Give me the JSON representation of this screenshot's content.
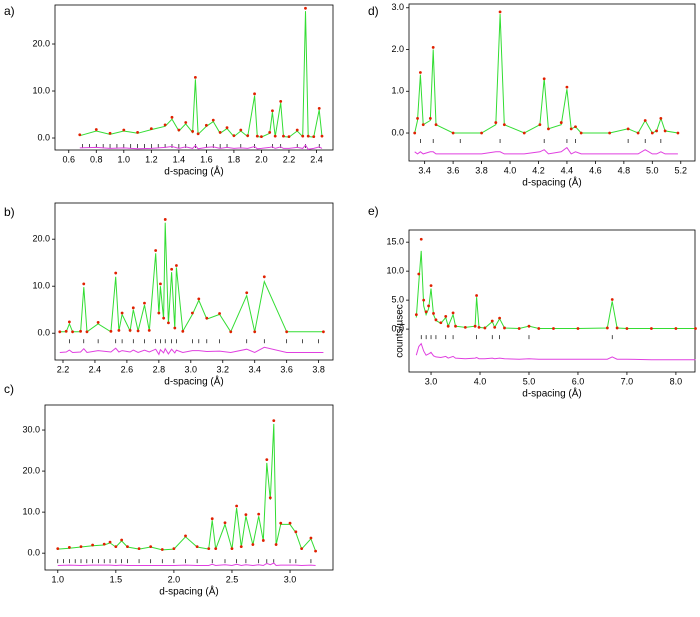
{
  "chart_data": [
    {
      "type": "line",
      "label": "a)",
      "xlabel": "d-spacing (Å)",
      "xlim": [
        0.5,
        2.52
      ],
      "ylim": [
        -2.55,
        28.3
      ],
      "xticks": [
        0.6,
        0.8,
        {
          "value": 1,
          "label": "1.0"
        },
        1.2,
        1.4,
        1.6,
        1.8,
        {
          "value": 2,
          "label": "2.0"
        },
        2.2,
        2.4
      ],
      "yticks": [
        {
          "value": 0,
          "label": "0.0"
        },
        {
          "value": 10,
          "label": "10.0"
        },
        {
          "value": 20,
          "label": "20.0"
        }
      ],
      "x": [
        0.68,
        0.8,
        0.9,
        1.0,
        1.1,
        1.2,
        1.3,
        1.35,
        1.4,
        1.45,
        1.5,
        1.52,
        1.54,
        1.6,
        1.65,
        1.7,
        1.75,
        1.8,
        1.85,
        1.9,
        1.95,
        1.97,
        2.0,
        2.06,
        2.08,
        2.1,
        2.14,
        2.16,
        2.2,
        2.26,
        2.3,
        2.32,
        2.34,
        2.38,
        2.42,
        2.44
      ],
      "series": [
        {
          "style": "points",
          "color": "#e02000",
          "values": [
            0.7,
            1.8,
            1.0,
            1.7,
            1.2,
            2.0,
            2.8,
            4.4,
            1.7,
            3.3,
            1.4,
            12.9,
            0.9,
            2.7,
            3.8,
            1.2,
            2.2,
            0.5,
            1.7,
            0.5,
            9.4,
            0.4,
            0.3,
            1.2,
            5.8,
            0.4,
            7.8,
            0.4,
            0.3,
            1.7,
            0.4,
            27.6,
            0.4,
            0.3,
            6.3,
            0.4
          ]
        },
        {
          "style": "line",
          "color": "#33dd33",
          "values": [
            0.5,
            1.5,
            0.8,
            1.5,
            1.0,
            1.8,
            2.5,
            4.0,
            1.5,
            3.0,
            1.2,
            12.5,
            0.8,
            2.5,
            3.5,
            1.0,
            2.0,
            0.3,
            1.5,
            0.3,
            9.0,
            0.3,
            0.2,
            1.0,
            5.5,
            0.3,
            7.5,
            0.3,
            0.2,
            1.5,
            0.3,
            27.0,
            0.3,
            0.2,
            6.0,
            0.3
          ]
        },
        {
          "style": "line",
          "color": "#e040e0",
          "values": [
            -2.1,
            -2.0,
            -2.2,
            -2.1,
            -2.3,
            -2.2,
            -2.0,
            -1.8,
            -2.2,
            -1.9,
            -2.2,
            -1.6,
            -2.3,
            -2.0,
            -1.9,
            -2.2,
            -2.0,
            -2.2,
            -2.1,
            -2.2,
            -1.8,
            -2.3,
            -2.2,
            -2.0,
            -1.9,
            -2.2,
            -1.9,
            -2.2,
            -2.2,
            -2.0,
            -2.2,
            -1.5,
            -2.4,
            -2.2,
            -1.9,
            -2.2
          ]
        }
      ],
      "reflections": [
        0.7,
        0.75,
        0.8,
        0.85,
        0.9,
        0.95,
        1.0,
        1.05,
        1.1,
        1.15,
        1.2,
        1.25,
        1.3,
        1.35,
        1.4,
        1.45,
        1.52,
        1.6,
        1.65,
        1.7,
        1.75,
        1.85,
        1.95,
        2.08,
        2.14,
        2.26,
        2.32,
        2.42
      ]
    },
    {
      "type": "line",
      "label": "b)",
      "xlabel": "d-spacing (Å)",
      "xlim": [
        2.15,
        3.89
      ],
      "ylim": [
        -5.7,
        27.7
      ],
      "xticks": [
        2.2,
        2.4,
        2.6,
        2.8,
        {
          "value": 3,
          "label": "3.0"
        },
        3.2,
        3.4,
        3.6,
        3.8
      ],
      "yticks": [
        {
          "value": 0,
          "label": "0.0"
        },
        {
          "value": 10,
          "label": "10.0"
        },
        {
          "value": 20,
          "label": "20.0"
        }
      ],
      "x": [
        2.18,
        2.22,
        2.24,
        2.26,
        2.31,
        2.33,
        2.35,
        2.42,
        2.5,
        2.53,
        2.55,
        2.57,
        2.62,
        2.64,
        2.67,
        2.71,
        2.74,
        2.78,
        2.8,
        2.81,
        2.83,
        2.84,
        2.86,
        2.88,
        2.9,
        2.91,
        2.95,
        3.01,
        3.05,
        3.1,
        3.18,
        3.25,
        3.35,
        3.4,
        3.46,
        3.6,
        3.83
      ],
      "series": [
        {
          "style": "points",
          "color": "#e02000",
          "values": [
            0.3,
            0.4,
            2.4,
            0.3,
            0.4,
            10.5,
            0.3,
            2.3,
            0.4,
            12.8,
            0.6,
            4.3,
            0.6,
            5.4,
            0.5,
            6.4,
            0.6,
            17.6,
            4.3,
            10.5,
            3.2,
            24.2,
            2.2,
            13.6,
            1.1,
            14.4,
            0.4,
            4.3,
            7.3,
            3.2,
            4.2,
            0.3,
            8.6,
            0.3,
            12.0,
            0.3,
            0.3
          ]
        },
        {
          "style": "line",
          "color": "#33dd33",
          "values": [
            0.3,
            0.3,
            2.0,
            0.3,
            0.3,
            9.8,
            0.3,
            2.0,
            0.3,
            12.0,
            0.5,
            4.0,
            0.5,
            5.0,
            0.5,
            6.0,
            0.5,
            17.0,
            4.0,
            10.0,
            3.0,
            23.5,
            2.0,
            13.0,
            1.0,
            14.0,
            0.4,
            4.0,
            7.0,
            3.0,
            4.0,
            0.3,
            8.0,
            0.3,
            11.0,
            0.3,
            0.3
          ]
        },
        {
          "style": "line",
          "color": "#e040e0",
          "values": [
            -4.1,
            -4.0,
            -3.6,
            -4.1,
            -4.0,
            -3.3,
            -4.1,
            -3.7,
            -4.0,
            -3.2,
            -4.0,
            -3.7,
            -4.0,
            -3.6,
            -4.1,
            -3.6,
            -4.0,
            -3.4,
            -4.5,
            -3.5,
            -4.2,
            -3.3,
            -4.4,
            -3.4,
            -4.2,
            -3.6,
            -4.1,
            -3.7,
            -3.7,
            -3.9,
            -3.8,
            -4.1,
            -3.4,
            -4.1,
            -3.0,
            -4.1,
            -4.1
          ]
        }
      ],
      "reflections": [
        2.24,
        2.33,
        2.42,
        2.53,
        2.57,
        2.64,
        2.71,
        2.78,
        2.81,
        2.84,
        2.88,
        2.91,
        3.01,
        3.05,
        3.1,
        3.18,
        3.35,
        3.46,
        3.6,
        3.7,
        3.8
      ]
    },
    {
      "type": "line",
      "label": "c)",
      "xlabel": "d-spacing (Å)",
      "xlim": [
        0.89,
        3.37
      ],
      "ylim": [
        -4.1,
        36.1
      ],
      "xticks": [
        {
          "value": 1,
          "label": "1.0"
        },
        1.5,
        {
          "value": 2,
          "label": "2.0"
        },
        2.5,
        {
          "value": 3,
          "label": "3.0"
        }
      ],
      "yticks": [
        {
          "value": 0,
          "label": "0.0"
        },
        {
          "value": 10,
          "label": "10.0"
        },
        {
          "value": 20,
          "label": "20.0"
        },
        {
          "value": 30,
          "label": "30.0"
        }
      ],
      "x": [
        1.0,
        1.1,
        1.2,
        1.3,
        1.4,
        1.45,
        1.5,
        1.55,
        1.6,
        1.7,
        1.8,
        1.9,
        2.0,
        2.1,
        2.2,
        2.3,
        2.33,
        2.36,
        2.44,
        2.5,
        2.54,
        2.58,
        2.62,
        2.68,
        2.73,
        2.77,
        2.8,
        2.83,
        2.86,
        2.88,
        2.92,
        3.0,
        3.05,
        3.1,
        3.18,
        3.22
      ],
      "series": [
        {
          "style": "points",
          "color": "#e02000",
          "values": [
            1.1,
            1.4,
            1.6,
            2.0,
            2.2,
            2.7,
            1.6,
            3.2,
            1.6,
            1.1,
            1.6,
            0.9,
            1.1,
            4.2,
            1.6,
            1.1,
            8.4,
            1.1,
            7.4,
            1.1,
            11.5,
            1.6,
            9.4,
            2.1,
            9.5,
            3.1,
            22.8,
            13.5,
            32.3,
            2.1,
            7.3,
            7.3,
            5.2,
            1.1,
            3.7,
            0.5
          ]
        },
        {
          "style": "line",
          "color": "#33dd33",
          "values": [
            1.0,
            1.2,
            1.5,
            1.8,
            2.0,
            2.5,
            1.5,
            3.0,
            1.5,
            1.0,
            1.5,
            0.8,
            1.0,
            4.0,
            1.5,
            1.0,
            8.0,
            1.0,
            7.0,
            1.0,
            11.0,
            1.5,
            9.0,
            2.0,
            9.0,
            3.0,
            22.0,
            13.0,
            31.5,
            2.0,
            7.0,
            7.0,
            5.0,
            1.0,
            3.5,
            0.5
          ]
        },
        {
          "style": "line",
          "color": "#e040e0",
          "values": [
            -3.0,
            -2.9,
            -3.0,
            -2.9,
            -2.9,
            -2.9,
            -3.0,
            -2.9,
            -3.0,
            -3.0,
            -3.0,
            -3.0,
            -3.0,
            -2.9,
            -3.0,
            -3.0,
            -2.7,
            -3.0,
            -2.8,
            -3.0,
            -2.7,
            -3.0,
            -2.8,
            -3.0,
            -2.8,
            -3.0,
            -2.5,
            -2.8,
            -2.4,
            -3.0,
            -2.9,
            -2.9,
            -2.9,
            -3.0,
            -2.9,
            -3.0
          ]
        }
      ],
      "reflections": [
        1.0,
        1.05,
        1.1,
        1.15,
        1.2,
        1.25,
        1.3,
        1.35,
        1.4,
        1.45,
        1.5,
        1.55,
        1.6,
        1.7,
        1.8,
        1.9,
        2.0,
        2.1,
        2.2,
        2.33,
        2.44,
        2.54,
        2.62,
        2.73,
        2.8,
        2.86,
        3.0,
        3.05,
        3.18
      ]
    },
    {
      "type": "line",
      "label": "d)",
      "xlabel": "d-spacing (Å)",
      "xlim": [
        3.29,
        5.3
      ],
      "ylim": [
        -0.67,
        3.09
      ],
      "xticks": [
        3.4,
        3.6,
        3.8,
        {
          "value": 4,
          "label": "4.0"
        },
        4.2,
        4.4,
        4.6,
        4.8,
        {
          "value": 5,
          "label": "5.0"
        },
        5.2
      ],
      "yticks": [
        {
          "value": 0,
          "label": "0.0"
        },
        {
          "value": 1,
          "label": "1.0"
        },
        {
          "value": 2,
          "label": "2.0"
        },
        {
          "value": 3,
          "label": "3.0"
        }
      ],
      "x": [
        3.33,
        3.35,
        3.37,
        3.39,
        3.44,
        3.46,
        3.48,
        3.6,
        3.8,
        3.9,
        3.93,
        3.96,
        4.1,
        4.21,
        4.24,
        4.27,
        4.36,
        4.4,
        4.43,
        4.46,
        4.5,
        4.7,
        4.83,
        4.9,
        4.95,
        5.0,
        5.03,
        5.06,
        5.09,
        5.18
      ],
      "series": [
        {
          "style": "points",
          "color": "#e02000",
          "values": [
            0.0,
            0.35,
            1.45,
            0.2,
            0.35,
            2.05,
            0.2,
            0.0,
            0.0,
            0.25,
            2.9,
            0.2,
            0.0,
            0.2,
            1.3,
            0.1,
            0.25,
            1.1,
            0.1,
            0.15,
            0.0,
            0.0,
            0.1,
            0.0,
            0.3,
            0.0,
            0.05,
            0.35,
            0.05,
            0.0
          ]
        },
        {
          "style": "line",
          "color": "#33dd33",
          "values": [
            0.0,
            0.3,
            1.4,
            0.2,
            0.3,
            2.0,
            0.2,
            0.0,
            0.0,
            0.2,
            2.85,
            0.2,
            0.0,
            0.2,
            1.3,
            0.1,
            0.2,
            1.05,
            0.1,
            0.15,
            0.0,
            0.0,
            0.1,
            0.0,
            0.3,
            0.0,
            0.05,
            0.35,
            0.05,
            0.0
          ]
        },
        {
          "style": "line",
          "color": "#e040e0",
          "values": [
            -0.45,
            -0.5,
            -0.45,
            -0.5,
            -0.45,
            -0.45,
            -0.5,
            -0.5,
            -0.5,
            -0.45,
            -0.45,
            -0.5,
            -0.5,
            -0.45,
            -0.4,
            -0.5,
            -0.45,
            -0.35,
            -0.5,
            -0.45,
            -0.5,
            -0.5,
            -0.5,
            -0.5,
            -0.4,
            -0.5,
            -0.5,
            -0.45,
            -0.5,
            -0.5
          ]
        }
      ],
      "reflections": [
        3.37,
        3.46,
        3.65,
        3.93,
        4.24,
        4.4,
        4.46,
        4.83,
        4.95,
        5.06
      ]
    },
    {
      "type": "line",
      "label": "e)",
      "xlabel": "d-spacing (Å)",
      "ylabel": "counts/µsec",
      "xlim": [
        2.55,
        8.39
      ],
      "ylim": [
        -7.4,
        17.1
      ],
      "xticks": [
        {
          "value": 3,
          "label": "3.0"
        },
        {
          "value": 4,
          "label": "4.0"
        },
        {
          "value": 5,
          "label": "5.0"
        },
        {
          "value": 6,
          "label": "6.0"
        },
        {
          "value": 7,
          "label": "7.0"
        },
        {
          "value": 8,
          "label": "8.0"
        }
      ],
      "yticks": [
        {
          "value": 0,
          "label": "0.0"
        },
        {
          "value": 5,
          "label": "5.0"
        },
        {
          "value": 10,
          "label": "10.0"
        },
        {
          "value": 15,
          "label": "15.0"
        }
      ],
      "x": [
        2.7,
        2.75,
        2.8,
        2.85,
        2.9,
        2.95,
        3.0,
        3.05,
        3.1,
        3.2,
        3.3,
        3.35,
        3.45,
        3.5,
        3.7,
        3.9,
        3.93,
        3.98,
        4.1,
        4.25,
        4.3,
        4.4,
        4.5,
        4.8,
        5.0,
        5.2,
        5.5,
        6.0,
        6.6,
        6.7,
        6.8,
        7.0,
        7.5,
        8.0,
        8.4
      ],
      "series": [
        {
          "style": "points",
          "color": "#e02000",
          "values": [
            2.5,
            9.5,
            15.5,
            5.0,
            3.0,
            4.0,
            7.5,
            2.7,
            1.6,
            1.1,
            2.2,
            0.5,
            2.8,
            0.5,
            0.3,
            0.5,
            5.8,
            0.3,
            0.2,
            1.4,
            0.3,
            1.9,
            0.2,
            0.1,
            0.5,
            0.1,
            0.1,
            0.1,
            0.2,
            5.1,
            0.2,
            0.1,
            0.1,
            0.1,
            0.1
          ]
        },
        {
          "style": "line",
          "color": "#33dd33",
          "values": [
            2.0,
            8.0,
            13.5,
            4.0,
            2.5,
            3.5,
            7.0,
            2.5,
            1.5,
            1.0,
            2.0,
            0.5,
            2.5,
            0.5,
            0.3,
            0.5,
            5.5,
            0.3,
            0.2,
            1.3,
            0.3,
            1.8,
            0.2,
            0.1,
            0.5,
            0.1,
            0.1,
            0.1,
            0.2,
            4.8,
            0.2,
            0.1,
            0.1,
            0.1,
            0.1
          ]
        },
        {
          "style": "line",
          "color": "#e040e0",
          "values": [
            -4.5,
            -3.0,
            -2.5,
            -3.8,
            -4.5,
            -4.3,
            -4.0,
            -4.6,
            -4.8,
            -4.9,
            -4.7,
            -5.0,
            -4.7,
            -5.0,
            -5.1,
            -5.0,
            -4.9,
            -5.1,
            -5.1,
            -5.0,
            -5.1,
            -5.0,
            -5.1,
            -5.2,
            -5.1,
            -5.2,
            -5.2,
            -5.2,
            -5.2,
            -4.8,
            -5.2,
            -5.2,
            -5.3,
            -5.3,
            -5.3
          ]
        }
      ],
      "reflections": [
        2.8,
        2.9,
        3.0,
        3.1,
        3.3,
        3.45,
        3.93,
        4.25,
        4.4,
        5.0,
        6.7
      ]
    }
  ]
}
